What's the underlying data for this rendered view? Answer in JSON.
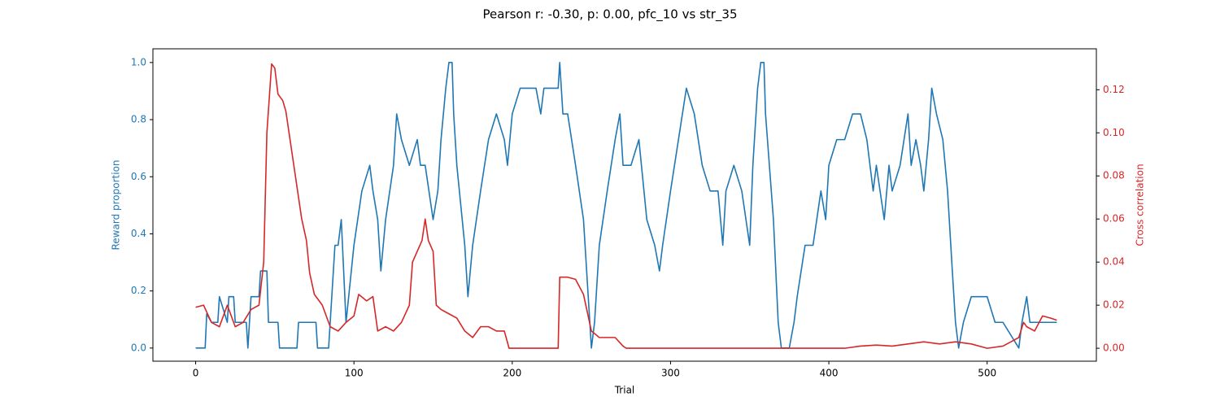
{
  "chart_data": {
    "type": "line",
    "title": "Pearson r: -0.30, p: 0.00, pfc_10 vs str_35",
    "x_label": "Trial",
    "y_label": "Reward proportion",
    "y2_label": "Cross correlation",
    "xlim": [
      -27,
      569
    ],
    "ylim": [
      -0.046,
      1.048
    ],
    "y2lim": [
      -0.006,
      0.139
    ],
    "xticks": [
      0,
      100,
      200,
      300,
      400,
      500
    ],
    "yticks": [
      {
        "value": 0,
        "label": "0.0"
      },
      0.2,
      0.4,
      0.6,
      0.8,
      {
        "value": 1,
        "label": "1.0"
      }
    ],
    "y2ticks": [
      {
        "value": 0,
        "label": "0.00"
      },
      {
        "value": 0.02,
        "label": "0.02"
      },
      {
        "value": 0.04,
        "label": "0.04"
      },
      {
        "value": 0.06,
        "label": "0.06"
      },
      {
        "value": 0.08,
        "label": "0.08"
      },
      {
        "value": 0.1,
        "label": "0.10"
      },
      {
        "value": 0.12,
        "label": "0.12"
      }
    ],
    "series": [
      {
        "name": "Reward proportion",
        "color": "#1f77b4",
        "axis": "y",
        "x": [
          0,
          6,
          7,
          10,
          14,
          15,
          20,
          21,
          22,
          24,
          25,
          32,
          33,
          35,
          40,
          41,
          45,
          46,
          48,
          52,
          53,
          64,
          65,
          76,
          77,
          84,
          85,
          88,
          90,
          92,
          95,
          100,
          105,
          110,
          112,
          115,
          117,
          120,
          125,
          127,
          130,
          135,
          140,
          142,
          145,
          150,
          153,
          155,
          158,
          160,
          162,
          163,
          165,
          170,
          172,
          175,
          180,
          185,
          190,
          195,
          197,
          200,
          205,
          210,
          215,
          218,
          220,
          225,
          229,
          230,
          232,
          235,
          240,
          245,
          248,
          250,
          252,
          255,
          260,
          265,
          268,
          270,
          275,
          280,
          285,
          290,
          293,
          295,
          300,
          305,
          310,
          315,
          320,
          325,
          330,
          333,
          335,
          340,
          345,
          350,
          352,
          355,
          357,
          359,
          360,
          365,
          368,
          370,
          375,
          378,
          380,
          385,
          390,
          395,
          398,
          400,
          405,
          410,
          415,
          420,
          424,
          428,
          430,
          435,
          438,
          440,
          445,
          450,
          452,
          455,
          458,
          460,
          463,
          465,
          468,
          472,
          475,
          478,
          480,
          482,
          485,
          490,
          500,
          505,
          510,
          520,
          522,
          525,
          527,
          530,
          544
        ],
        "values": [
          0,
          0,
          0.12,
          0.09,
          0.09,
          0.18,
          0.09,
          0.18,
          0.18,
          0.18,
          0.09,
          0.09,
          0,
          0.18,
          0.18,
          0.27,
          0.27,
          0.09,
          0.09,
          0.09,
          0,
          0,
          0.09,
          0.09,
          0,
          0,
          0.09,
          0.36,
          0.36,
          0.45,
          0.09,
          0.36,
          0.55,
          0.64,
          0.55,
          0.45,
          0.27,
          0.45,
          0.64,
          0.82,
          0.73,
          0.64,
          0.73,
          0.64,
          0.64,
          0.45,
          0.55,
          0.73,
          0.91,
          1.0,
          1.0,
          0.82,
          0.64,
          0.36,
          0.18,
          0.36,
          0.55,
          0.73,
          0.82,
          0.73,
          0.64,
          0.82,
          0.91,
          0.91,
          0.91,
          0.82,
          0.91,
          0.91,
          0.91,
          1.0,
          0.82,
          0.82,
          0.64,
          0.45,
          0.18,
          0,
          0.09,
          0.36,
          0.55,
          0.73,
          0.82,
          0.64,
          0.64,
          0.73,
          0.45,
          0.36,
          0.27,
          0.36,
          0.55,
          0.73,
          0.91,
          0.82,
          0.64,
          0.55,
          0.55,
          0.36,
          0.55,
          0.64,
          0.55,
          0.36,
          0.64,
          0.91,
          1.0,
          1.0,
          0.82,
          0.45,
          0.09,
          0,
          0,
          0.09,
          0.18,
          0.36,
          0.36,
          0.55,
          0.45,
          0.64,
          0.73,
          0.73,
          0.82,
          0.82,
          0.73,
          0.55,
          0.64,
          0.45,
          0.64,
          0.55,
          0.64,
          0.82,
          0.64,
          0.73,
          0.64,
          0.55,
          0.73,
          0.91,
          0.82,
          0.73,
          0.55,
          0.27,
          0.09,
          0,
          0.09,
          0.18,
          0.18,
          0.09,
          0.09,
          0,
          0.09,
          0.18,
          0.09,
          0.09,
          0.09
        ]
      },
      {
        "name": "Cross correlation",
        "color": "#d62728",
        "axis": "y2",
        "x": [
          0,
          5,
          10,
          15,
          20,
          25,
          30,
          35,
          40,
          43,
          45,
          48,
          50,
          52,
          55,
          57,
          60,
          62,
          65,
          67,
          70,
          72,
          75,
          80,
          85,
          90,
          95,
          100,
          103,
          108,
          112,
          115,
          120,
          125,
          130,
          135,
          137,
          140,
          143,
          145,
          147,
          150,
          152,
          155,
          160,
          165,
          170,
          175,
          180,
          185,
          190,
          195,
          198,
          229,
          230,
          235,
          240,
          245,
          250,
          255,
          260,
          265,
          270,
          272,
          410,
          420,
          430,
          440,
          450,
          460,
          470,
          480,
          490,
          500,
          510,
          515,
          520,
          523,
          525,
          530,
          535,
          540,
          544
        ],
        "values": [
          0.019,
          0.02,
          0.012,
          0.01,
          0.02,
          0.01,
          0.012,
          0.018,
          0.02,
          0.04,
          0.1,
          0.132,
          0.13,
          0.118,
          0.115,
          0.11,
          0.095,
          0.085,
          0.07,
          0.06,
          0.05,
          0.035,
          0.025,
          0.02,
          0.01,
          0.008,
          0.012,
          0.015,
          0.025,
          0.022,
          0.024,
          0.008,
          0.01,
          0.008,
          0.012,
          0.02,
          0.04,
          0.045,
          0.05,
          0.06,
          0.05,
          0.045,
          0.02,
          0.018,
          0.016,
          0.014,
          0.008,
          0.005,
          0.01,
          0.01,
          0.008,
          0.008,
          0,
          0,
          0.033,
          0.033,
          0.032,
          0.025,
          0.008,
          0.005,
          0.005,
          0.005,
          0.001,
          0,
          0,
          0.001,
          0.0015,
          0.001,
          0.002,
          0.003,
          0.002,
          0.003,
          0.002,
          0,
          0.001,
          0.003,
          0.005,
          0.012,
          0.01,
          0.008,
          0.015,
          0.014,
          0.013
        ]
      }
    ]
  }
}
